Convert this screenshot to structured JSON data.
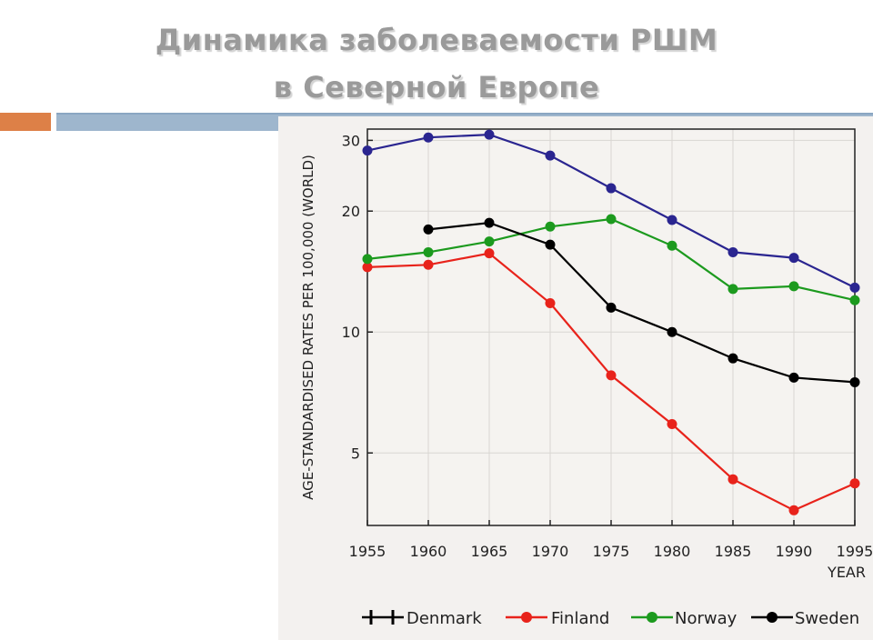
{
  "slide": {
    "title_line1": "Динамика заболеваемости  РШМ",
    "title_line2": "в Северной Европе"
  },
  "colors": {
    "accent_orange": "#dd8047",
    "accent_blue": "#9eb6cd",
    "title_gray": "#9a9a9a"
  },
  "chart_data": {
    "type": "line",
    "xlabel": "YEAR",
    "ylabel": "AGE-STANDARDISED RATES PER 100,000 (WORLD)",
    "y_scale": "log",
    "xlim": [
      1955,
      1995
    ],
    "ylim": [
      3.3,
      32
    ],
    "x_ticks": [
      1955,
      1960,
      1965,
      1970,
      1975,
      1980,
      1985,
      1990,
      1995
    ],
    "y_ticks": [
      5,
      10,
      20,
      30
    ],
    "grid": true,
    "legend_position": "bottom",
    "series": [
      {
        "name": "Denmark",
        "color": "#2a2590",
        "x": [
          1955,
          1960,
          1965,
          1970,
          1975,
          1980,
          1985,
          1990,
          1995
        ],
        "y": [
          28.3,
          30.5,
          31.0,
          27.5,
          22.8,
          19.0,
          15.8,
          15.3,
          12.9
        ]
      },
      {
        "name": "Finland",
        "color": "#e8231b",
        "x": [
          1955,
          1960,
          1965,
          1970,
          1975,
          1980,
          1985,
          1990,
          1995
        ],
        "y": [
          14.5,
          14.7,
          15.7,
          11.8,
          7.8,
          5.9,
          4.3,
          3.6,
          4.2
        ]
      },
      {
        "name": "Norway",
        "color": "#1c9a1e",
        "x": [
          1955,
          1960,
          1965,
          1970,
          1975,
          1980,
          1985,
          1990,
          1995
        ],
        "y": [
          15.2,
          15.8,
          16.8,
          18.3,
          19.1,
          16.4,
          12.8,
          13.0,
          12.0
        ]
      },
      {
        "name": "Sweden",
        "color": "#000000",
        "x": [
          1960,
          1965,
          1970,
          1975,
          1980,
          1985,
          1990,
          1995
        ],
        "y": [
          18.0,
          18.7,
          16.5,
          11.5,
          10.0,
          8.6,
          7.7,
          7.5
        ]
      }
    ]
  }
}
